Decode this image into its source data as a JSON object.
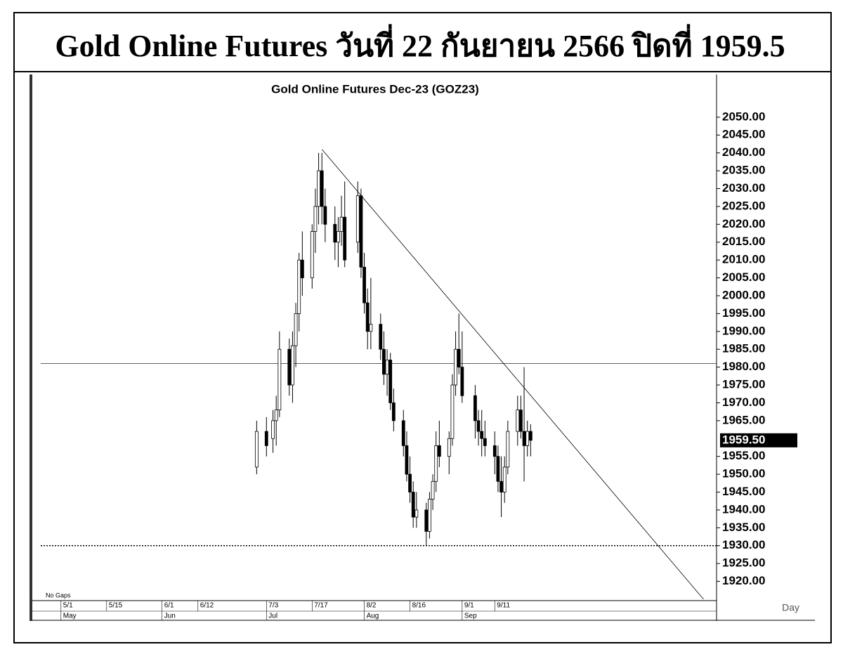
{
  "header": {
    "title": "Gold Online Futures วันที่ 22 กันยายน 2566 ปิดที่ 1959.5"
  },
  "chart_data": {
    "type": "candlestick",
    "title": "Gold Online Futures Dec-23 (GOZ23)",
    "x": [
      "6/30",
      "7/3",
      "7/5",
      "7/6",
      "7/7",
      "7/10",
      "7/11",
      "7/12",
      "7/13",
      "7/14",
      "7/17",
      "7/18",
      "7/19",
      "7/20",
      "7/21",
      "7/24",
      "7/25",
      "7/26",
      "7/27",
      "7/31",
      "8/1",
      "8/2",
      "8/3",
      "8/4",
      "8/7",
      "8/8",
      "8/9",
      "8/10",
      "8/11",
      "8/14",
      "8/15",
      "8/16",
      "8/17",
      "8/18",
      "8/21",
      "8/22",
      "8/23",
      "8/24",
      "8/25",
      "8/28",
      "8/29",
      "8/30",
      "8/31",
      "9/1",
      "9/5",
      "9/6",
      "9/7",
      "9/8",
      "9/11",
      "9/12",
      "9/13",
      "9/14",
      "9/15",
      "9/18",
      "9/19",
      "9/20",
      "9/21",
      "9/22"
    ],
    "open": [
      1952,
      1962,
      1960,
      1965,
      1968,
      1985,
      1975,
      1986,
      1995,
      2010,
      2005,
      2018,
      2025,
      2035,
      2025,
      2020,
      2015,
      2018,
      2022,
      2015,
      2028,
      2008,
      1998,
      1990,
      1992,
      1985,
      1978,
      1982,
      1970,
      1965,
      1958,
      1950,
      1945,
      1938,
      1940,
      1934,
      1943,
      1948,
      1958,
      1955,
      1960,
      1975,
      1985,
      1980,
      1972,
      1965,
      1962,
      1960,
      1958,
      1955,
      1948,
      1945,
      1952,
      1962,
      1968,
      1962,
      1958,
      1962
    ],
    "high": [
      1965,
      1966,
      1968,
      1972,
      1990,
      1988,
      1990,
      1998,
      2012,
      2018,
      2020,
      2030,
      2040,
      2040,
      2030,
      2025,
      2022,
      2028,
      2032,
      2032,
      2030,
      2012,
      2002,
      2005,
      1995,
      1990,
      1985,
      1984,
      1974,
      1968,
      1962,
      1955,
      1948,
      1945,
      1942,
      1945,
      1950,
      1962,
      1965,
      1962,
      1978,
      1990,
      1995,
      1990,
      1975,
      1968,
      1968,
      1965,
      1962,
      1958,
      1955,
      1955,
      1965,
      1972,
      1972,
      1980,
      1965,
      1964
    ],
    "low": [
      1950,
      1955,
      1956,
      1958,
      1966,
      1972,
      1970,
      1980,
      1990,
      2000,
      2002,
      2012,
      2020,
      2020,
      2015,
      2010,
      2008,
      2014,
      2008,
      2012,
      2005,
      1995,
      1985,
      1985,
      1982,
      1975,
      1972,
      1968,
      1962,
      1955,
      1948,
      1942,
      1935,
      1935,
      1930,
      1932,
      1940,
      1945,
      1952,
      1950,
      1958,
      1972,
      1978,
      1970,
      1960,
      1958,
      1955,
      1955,
      1950,
      1945,
      1938,
      1942,
      1950,
      1958,
      1960,
      1948,
      1955,
      1955
    ],
    "close": [
      1962,
      1958,
      1965,
      1968,
      1985,
      1975,
      1986,
      1995,
      2010,
      2005,
      2018,
      2025,
      2035,
      2025,
      2020,
      2015,
      2018,
      2022,
      2010,
      2028,
      2008,
      1998,
      1990,
      1992,
      1985,
      1978,
      1982,
      1970,
      1965,
      1958,
      1950,
      1945,
      1938,
      1940,
      1934,
      1943,
      1948,
      1958,
      1955,
      1960,
      1975,
      1985,
      1980,
      1972,
      1965,
      1962,
      1960,
      1958,
      1955,
      1948,
      1945,
      1952,
      1962,
      1968,
      1962,
      1958,
      1962,
      1959.5
    ],
    "up_color": "#ffffff",
    "down_color": "#000000",
    "xlim": [
      "4/22",
      "11/18"
    ],
    "xticks": [
      "5/1",
      "5/15",
      "6/1",
      "6/12",
      "7/3",
      "7/17",
      "8/2",
      "8/16",
      "9/1",
      "9/11"
    ],
    "month_ticks": [
      {
        "value": "5/1",
        "label": "May"
      },
      {
        "value": "6/1",
        "label": "Jun"
      },
      {
        "value": "7/3",
        "label": "Jul"
      },
      {
        "value": "8/2",
        "label": "Aug"
      },
      {
        "value": "9/1",
        "label": "Sep"
      }
    ],
    "ylim": [
      1915,
      2060
    ],
    "yticks": [
      {
        "value": 1920,
        "label": "1920.00"
      },
      {
        "value": 1925,
        "label": "1925.00"
      },
      {
        "value": 1930,
        "label": "1930.00"
      },
      {
        "value": 1935,
        "label": "1935.00"
      },
      {
        "value": 1940,
        "label": "1940.00"
      },
      {
        "value": 1945,
        "label": "1945.00"
      },
      {
        "value": 1950,
        "label": "1950.00"
      },
      {
        "value": 1955,
        "label": "1955.00"
      },
      {
        "value": 1965,
        "label": "1965.00"
      },
      {
        "value": 1970,
        "label": "1970.00"
      },
      {
        "value": 1975,
        "label": "1975.00"
      },
      {
        "value": 1980,
        "label": "1980.00"
      },
      {
        "value": 1985,
        "label": "1985.00"
      },
      {
        "value": 1990,
        "label": "1990.00"
      },
      {
        "value": 1995,
        "label": "1995.00"
      },
      {
        "value": 2000,
        "label": "2000.00"
      },
      {
        "value": 2005,
        "label": "2005.00"
      },
      {
        "value": 2010,
        "label": "2010.00"
      },
      {
        "value": 2015,
        "label": "2015.00"
      },
      {
        "value": 2020,
        "label": "2020.00"
      },
      {
        "value": 2025,
        "label": "2025.00"
      },
      {
        "value": 2030,
        "label": "2030.00"
      },
      {
        "value": 2035,
        "label": "2035.00"
      },
      {
        "value": 2040,
        "label": "2040.00"
      },
      {
        "value": 2045,
        "label": "2045.00"
      },
      {
        "value": 2050,
        "label": "2050.00"
      }
    ],
    "last_price": {
      "value": 1959.5,
      "label": "1959.50"
    },
    "reference_lines": [
      {
        "value": 1981,
        "style": "solid"
      },
      {
        "value": 1930,
        "style": "dotted"
      }
    ],
    "trend_line": {
      "x": [
        "7/20",
        "11/14"
      ],
      "y": [
        2041,
        1915
      ]
    },
    "gap_note": "No Gaps",
    "period_label": "Day",
    "grid": false
  }
}
